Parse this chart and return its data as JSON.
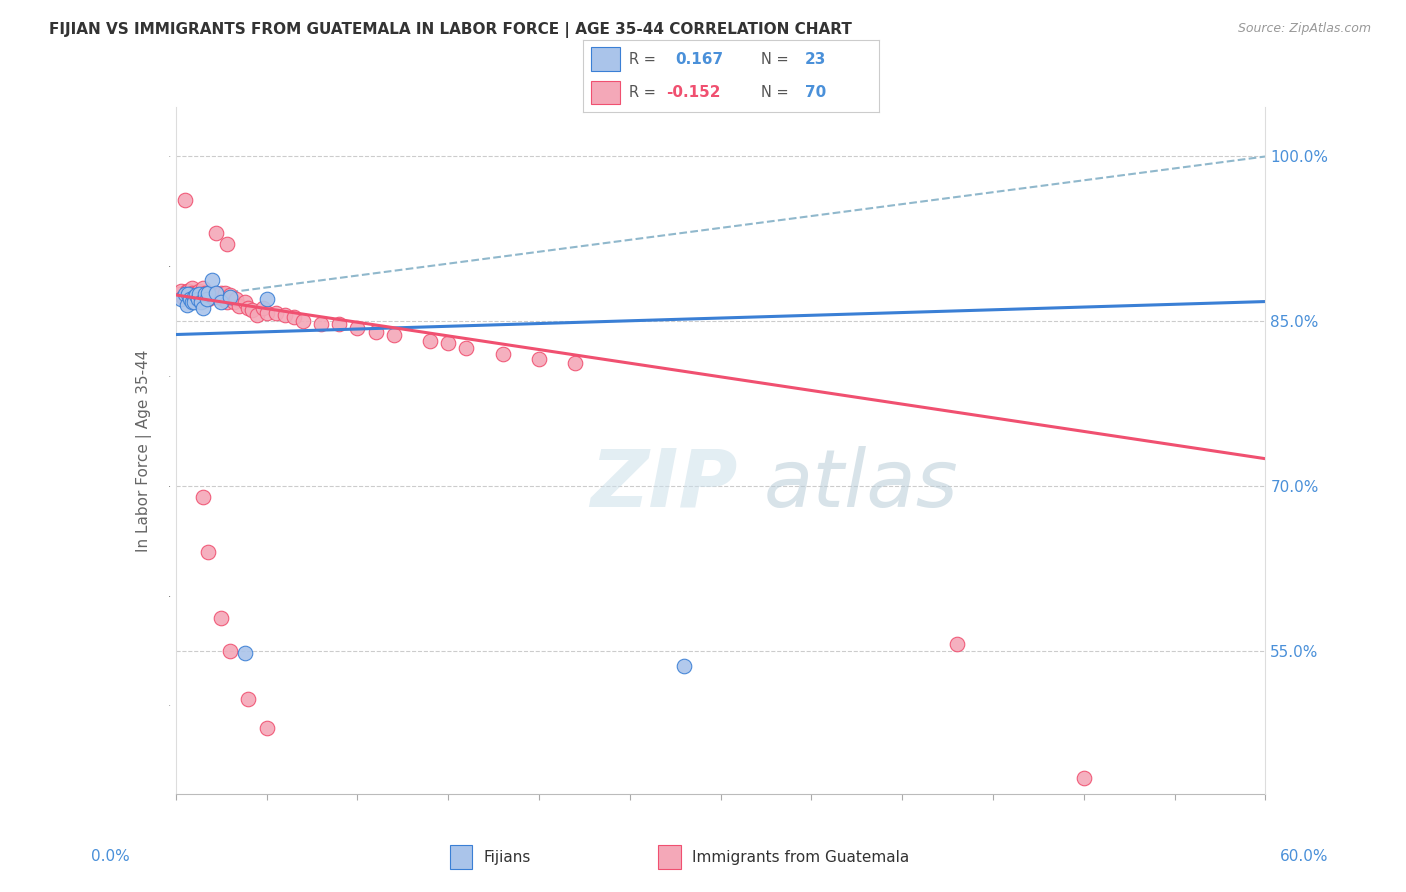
{
  "title": "FIJIAN VS IMMIGRANTS FROM GUATEMALA IN LABOR FORCE | AGE 35-44 CORRELATION CHART",
  "source": "Source: ZipAtlas.com",
  "ylabel": "In Labor Force | Age 35-44",
  "right_yticks": [
    55.0,
    70.0,
    85.0,
    100.0
  ],
  "xlim": [
    0.0,
    0.6
  ],
  "ylim": [
    0.42,
    1.045
  ],
  "R_fijian": 0.167,
  "N_fijian": 23,
  "R_guatemala": -0.152,
  "N_guatemala": 70,
  "fijian_color": "#aac4ea",
  "guatemala_color": "#f4a8b8",
  "fijian_line_color": "#3a7fd5",
  "guatemala_line_color": "#f05070",
  "dashed_line_color": "#90b8cc",
  "watermark_zip": "ZIP",
  "watermark_atlas": "atlas",
  "fijian_x": [
    0.003,
    0.005,
    0.006,
    0.007,
    0.008,
    0.009,
    0.01,
    0.01,
    0.011,
    0.012,
    0.013,
    0.014,
    0.015,
    0.016,
    0.017,
    0.018,
    0.02,
    0.022,
    0.025,
    0.03,
    0.05,
    0.038,
    0.28
  ],
  "fijian_y": [
    0.87,
    0.875,
    0.865,
    0.875,
    0.87,
    0.868,
    0.872,
    0.868,
    0.874,
    0.87,
    0.875,
    0.868,
    0.862,
    0.875,
    0.87,
    0.876,
    0.888,
    0.876,
    0.868,
    0.872,
    0.87,
    0.548,
    0.536
  ],
  "guatemala_x": [
    0.002,
    0.003,
    0.004,
    0.005,
    0.006,
    0.006,
    0.007,
    0.007,
    0.008,
    0.008,
    0.009,
    0.009,
    0.01,
    0.01,
    0.011,
    0.011,
    0.012,
    0.012,
    0.013,
    0.013,
    0.014,
    0.015,
    0.015,
    0.016,
    0.017,
    0.018,
    0.019,
    0.02,
    0.021,
    0.022,
    0.023,
    0.025,
    0.026,
    0.027,
    0.028,
    0.03,
    0.032,
    0.033,
    0.035,
    0.038,
    0.04,
    0.042,
    0.045,
    0.048,
    0.05,
    0.055,
    0.06,
    0.065,
    0.07,
    0.08,
    0.09,
    0.1,
    0.11,
    0.12,
    0.14,
    0.15,
    0.16,
    0.18,
    0.2,
    0.22,
    0.015,
    0.018,
    0.025,
    0.03,
    0.04,
    0.05,
    0.022,
    0.028,
    0.43,
    0.5
  ],
  "guatemala_y": [
    0.875,
    0.878,
    0.872,
    0.96,
    0.878,
    0.875,
    0.872,
    0.878,
    0.875,
    0.87,
    0.88,
    0.876,
    0.875,
    0.872,
    0.876,
    0.872,
    0.876,
    0.87,
    0.878,
    0.874,
    0.876,
    0.88,
    0.872,
    0.876,
    0.874,
    0.87,
    0.876,
    0.874,
    0.872,
    0.876,
    0.874,
    0.876,
    0.87,
    0.876,
    0.868,
    0.874,
    0.868,
    0.87,
    0.864,
    0.868,
    0.862,
    0.86,
    0.856,
    0.862,
    0.858,
    0.858,
    0.856,
    0.854,
    0.85,
    0.848,
    0.848,
    0.844,
    0.84,
    0.838,
    0.832,
    0.83,
    0.826,
    0.82,
    0.816,
    0.812,
    0.69,
    0.64,
    0.58,
    0.55,
    0.506,
    0.48,
    0.93,
    0.92,
    0.556,
    0.434
  ],
  "fijian_trend": [
    0.838,
    0.868
  ],
  "guatemala_trend": [
    0.874,
    0.725
  ],
  "dashed_trend": [
    0.87,
    1.0
  ]
}
